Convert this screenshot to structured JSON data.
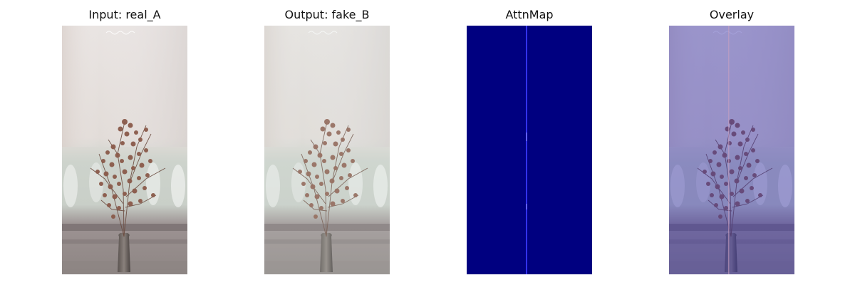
{
  "figure": {
    "panels": [
      {
        "title": "Input: real_A",
        "image": "dried-gypsophila-vase-photo"
      },
      {
        "title": "Output: fake_B",
        "image": "dried-gypsophila-vase-photo-generated"
      },
      {
        "title": "AttnMap",
        "image": "attention-heatmap-blue-vertical-line"
      },
      {
        "title": "Overlay",
        "image": "attention-overlay-purple-tint"
      }
    ]
  },
  "colors": {
    "attn_background": "#000080",
    "attn_line": "#3b3bff",
    "overlay_tint": "#5a55c8"
  }
}
